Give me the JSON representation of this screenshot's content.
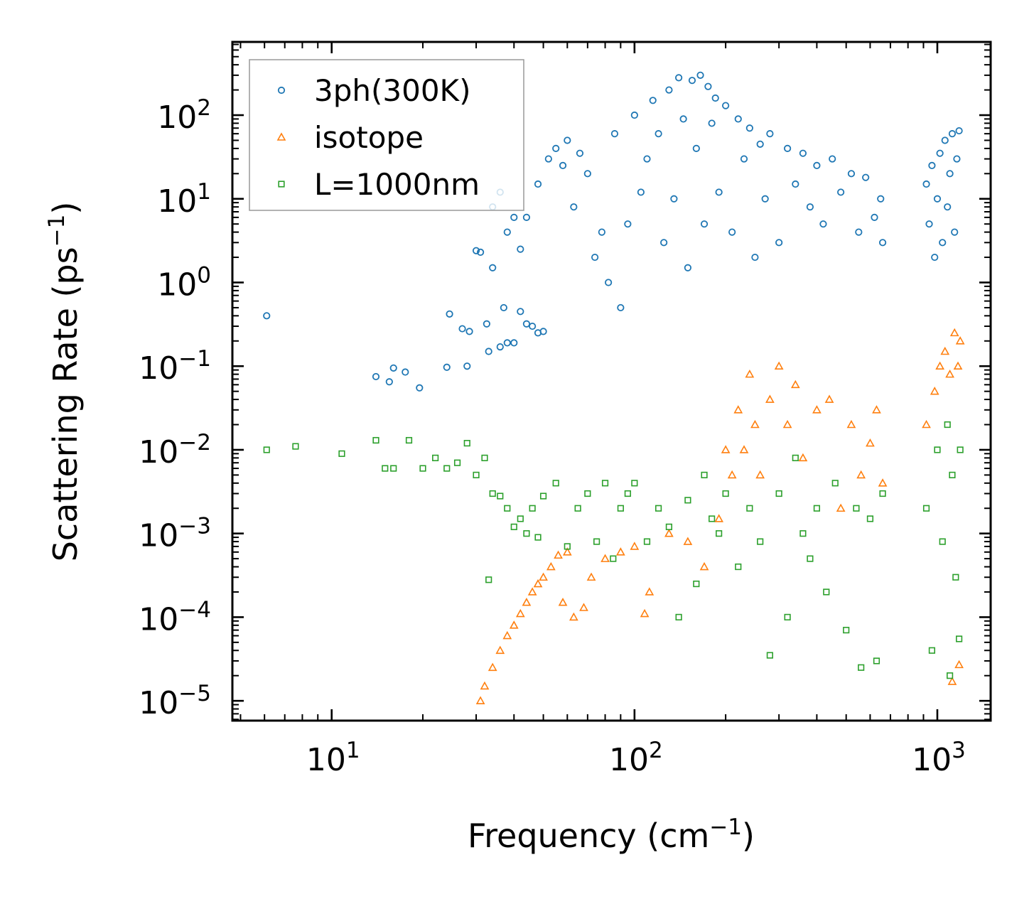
{
  "chart_data": {
    "type": "scatter",
    "title": "",
    "xlabel": "Frequency (cm",
    "xlabel_sup": "−1",
    "xlabel_suffix": ")",
    "ylabel": "Scattering Rate (ps",
    "ylabel_sup": "−1",
    "ylabel_suffix": ")",
    "xscale": "log",
    "yscale": "log",
    "xlim": [
      4.7,
      1500
    ],
    "ylim": [
      5.8e-06,
      750.0
    ],
    "x_ticks": [
      {
        "value": 10,
        "base": "10",
        "exp": "1"
      },
      {
        "value": 100,
        "base": "10",
        "exp": "2"
      },
      {
        "value": 1000,
        "base": "10",
        "exp": "3"
      }
    ],
    "y_ticks": [
      {
        "value": 1e-05,
        "base": "10",
        "exp": "−5"
      },
      {
        "value": 0.0001,
        "base": "10",
        "exp": "−4"
      },
      {
        "value": 0.001,
        "base": "10",
        "exp": "−3"
      },
      {
        "value": 0.01,
        "base": "10",
        "exp": "−2"
      },
      {
        "value": 0.1,
        "base": "10",
        "exp": "−1"
      },
      {
        "value": 1,
        "base": "10",
        "exp": "0"
      },
      {
        "value": 10,
        "base": "10",
        "exp": "1"
      },
      {
        "value": 100,
        "base": "10",
        "exp": "2"
      }
    ],
    "legend_position": "top-left",
    "series": [
      {
        "name": "3ph(300K)",
        "marker": "circle",
        "color": "#1f77b4",
        "points": [
          [
            6.1,
            0.4
          ],
          [
            14,
            0.075
          ],
          [
            15.5,
            0.065
          ],
          [
            16,
            0.095
          ],
          [
            17.5,
            0.085
          ],
          [
            19.5,
            0.055
          ],
          [
            24,
            0.097
          ],
          [
            24.5,
            0.42
          ],
          [
            27,
            0.28
          ],
          [
            28,
            0.1
          ],
          [
            28.5,
            0.26
          ],
          [
            30,
            2.4
          ],
          [
            31,
            2.3
          ],
          [
            32.5,
            0.32
          ],
          [
            33,
            0.15
          ],
          [
            34,
            1.5
          ],
          [
            36,
            0.17
          ],
          [
            37,
            0.5
          ],
          [
            38,
            0.19
          ],
          [
            40,
            0.19
          ],
          [
            42,
            0.45
          ],
          [
            44,
            0.32
          ],
          [
            46,
            0.3
          ],
          [
            48,
            0.25
          ],
          [
            50,
            0.26
          ],
          [
            34,
            8
          ],
          [
            36,
            12
          ],
          [
            38,
            4
          ],
          [
            40,
            6
          ],
          [
            42,
            2.5
          ],
          [
            44,
            6
          ],
          [
            48,
            15
          ],
          [
            52,
            30
          ],
          [
            55,
            40
          ],
          [
            58,
            25
          ],
          [
            60,
            50
          ],
          [
            63,
            8
          ],
          [
            66,
            35
          ],
          [
            70,
            20
          ],
          [
            74,
            2
          ],
          [
            78,
            4
          ],
          [
            82,
            1
          ],
          [
            86,
            60
          ],
          [
            90,
            0.5
          ],
          [
            95,
            5
          ],
          [
            100,
            100
          ],
          [
            105,
            12
          ],
          [
            110,
            30
          ],
          [
            115,
            150
          ],
          [
            120,
            60
          ],
          [
            125,
            3
          ],
          [
            130,
            200
          ],
          [
            135,
            10
          ],
          [
            140,
            280
          ],
          [
            145,
            90
          ],
          [
            150,
            1.5
          ],
          [
            155,
            260
          ],
          [
            160,
            40
          ],
          [
            165,
            300
          ],
          [
            170,
            5
          ],
          [
            175,
            220
          ],
          [
            180,
            80
          ],
          [
            185,
            160
          ],
          [
            190,
            12
          ],
          [
            200,
            130
          ],
          [
            210,
            4
          ],
          [
            220,
            90
          ],
          [
            230,
            30
          ],
          [
            240,
            70
          ],
          [
            250,
            2
          ],
          [
            260,
            45
          ],
          [
            270,
            10
          ],
          [
            280,
            60
          ],
          [
            300,
            3
          ],
          [
            320,
            40
          ],
          [
            340,
            15
          ],
          [
            360,
            35
          ],
          [
            380,
            8
          ],
          [
            400,
            25
          ],
          [
            420,
            5
          ],
          [
            450,
            30
          ],
          [
            480,
            12
          ],
          [
            520,
            20
          ],
          [
            550,
            4
          ],
          [
            580,
            18
          ],
          [
            620,
            6
          ],
          [
            650,
            10
          ],
          [
            660,
            3
          ],
          [
            920,
            15
          ],
          [
            940,
            5
          ],
          [
            960,
            25
          ],
          [
            980,
            2
          ],
          [
            1000,
            10
          ],
          [
            1020,
            35
          ],
          [
            1040,
            3
          ],
          [
            1060,
            50
          ],
          [
            1080,
            8
          ],
          [
            1100,
            20
          ],
          [
            1120,
            60
          ],
          [
            1140,
            4
          ],
          [
            1160,
            30
          ],
          [
            1180,
            65
          ]
        ]
      },
      {
        "name": "isotope",
        "marker": "triangle",
        "color": "#ff7f0e",
        "points": [
          [
            31,
            1e-05
          ],
          [
            32,
            1.5e-05
          ],
          [
            34,
            2.5e-05
          ],
          [
            36,
            4e-05
          ],
          [
            38,
            6e-05
          ],
          [
            40,
            8e-05
          ],
          [
            42,
            0.00011
          ],
          [
            44,
            0.00015
          ],
          [
            46,
            0.0002
          ],
          [
            48,
            0.00025
          ],
          [
            50,
            0.0003
          ],
          [
            53,
            0.0004
          ],
          [
            56,
            0.00055
          ],
          [
            60,
            0.0006
          ],
          [
            58,
            0.00015
          ],
          [
            63,
            0.0001
          ],
          [
            68,
            0.00013
          ],
          [
            72,
            0.0003
          ],
          [
            80,
            0.0005
          ],
          [
            90,
            0.0006
          ],
          [
            100,
            0.0007
          ],
          [
            108,
            0.00011
          ],
          [
            112,
            0.0002
          ],
          [
            130,
            0.001
          ],
          [
            150,
            0.0008
          ],
          [
            170,
            0.0004
          ],
          [
            190,
            0.0015
          ],
          [
            200,
            0.01
          ],
          [
            210,
            0.005
          ],
          [
            220,
            0.03
          ],
          [
            230,
            0.01
          ],
          [
            240,
            0.08
          ],
          [
            250,
            0.02
          ],
          [
            260,
            0.005
          ],
          [
            280,
            0.04
          ],
          [
            300,
            0.1
          ],
          [
            320,
            0.02
          ],
          [
            340,
            0.06
          ],
          [
            360,
            0.008
          ],
          [
            400,
            0.03
          ],
          [
            440,
            0.04
          ],
          [
            480,
            0.002
          ],
          [
            520,
            0.02
          ],
          [
            560,
            0.005
          ],
          [
            600,
            0.012
          ],
          [
            630,
            0.03
          ],
          [
            660,
            0.004
          ],
          [
            920,
            0.02
          ],
          [
            980,
            0.05
          ],
          [
            1020,
            0.1
          ],
          [
            1060,
            0.15
          ],
          [
            1100,
            0.08
          ],
          [
            1140,
            0.25
          ],
          [
            1170,
            0.1
          ],
          [
            1190,
            0.2
          ],
          [
            1120,
            1.7e-05
          ],
          [
            1180,
            2.7e-05
          ]
        ]
      },
      {
        "name": "L=1000nm",
        "marker": "square",
        "color": "#2ca02c",
        "points": [
          [
            6.1,
            0.01
          ],
          [
            7.6,
            0.011
          ],
          [
            10.8,
            0.009
          ],
          [
            14,
            0.013
          ],
          [
            15,
            0.006
          ],
          [
            16,
            0.006
          ],
          [
            18,
            0.013
          ],
          [
            20,
            0.006
          ],
          [
            22,
            0.008
          ],
          [
            24,
            0.006
          ],
          [
            26,
            0.007
          ],
          [
            28,
            0.012
          ],
          [
            30,
            0.005
          ],
          [
            32,
            0.008
          ],
          [
            34,
            0.003
          ],
          [
            36,
            0.0028
          ],
          [
            38,
            0.002
          ],
          [
            40,
            0.0012
          ],
          [
            42,
            0.0015
          ],
          [
            44,
            0.001
          ],
          [
            46,
            0.002
          ],
          [
            48,
            0.0009
          ],
          [
            50,
            0.0028
          ],
          [
            33,
            0.00028
          ],
          [
            55,
            0.004
          ],
          [
            60,
            0.0007
          ],
          [
            65,
            0.002
          ],
          [
            70,
            0.003
          ],
          [
            75,
            0.0008
          ],
          [
            80,
            0.004
          ],
          [
            85,
            0.0005
          ],
          [
            90,
            0.002
          ],
          [
            95,
            0.003
          ],
          [
            100,
            0.004
          ],
          [
            110,
            0.0008
          ],
          [
            120,
            0.002
          ],
          [
            130,
            0.0012
          ],
          [
            140,
            0.0001
          ],
          [
            150,
            0.0025
          ],
          [
            160,
            0.00025
          ],
          [
            170,
            0.005
          ],
          [
            180,
            0.0015
          ],
          [
            190,
            0.001
          ],
          [
            200,
            0.003
          ],
          [
            220,
            0.0004
          ],
          [
            240,
            0.002
          ],
          [
            260,
            0.0008
          ],
          [
            280,
            3.5e-05
          ],
          [
            300,
            0.003
          ],
          [
            320,
            0.0001
          ],
          [
            340,
            0.008
          ],
          [
            360,
            0.001
          ],
          [
            380,
            0.0005
          ],
          [
            400,
            0.002
          ],
          [
            430,
            0.0002
          ],
          [
            460,
            0.004
          ],
          [
            500,
            7e-05
          ],
          [
            540,
            0.002
          ],
          [
            560,
            2.5e-05
          ],
          [
            600,
            0.0015
          ],
          [
            630,
            3e-05
          ],
          [
            660,
            0.003
          ],
          [
            920,
            0.002
          ],
          [
            960,
            4e-05
          ],
          [
            1000,
            0.01
          ],
          [
            1040,
            0.0008
          ],
          [
            1080,
            0.02
          ],
          [
            1100,
            2e-05
          ],
          [
            1120,
            0.005
          ],
          [
            1150,
            0.0003
          ],
          [
            1180,
            5.5e-05
          ],
          [
            1190,
            0.01
          ]
        ]
      }
    ]
  }
}
